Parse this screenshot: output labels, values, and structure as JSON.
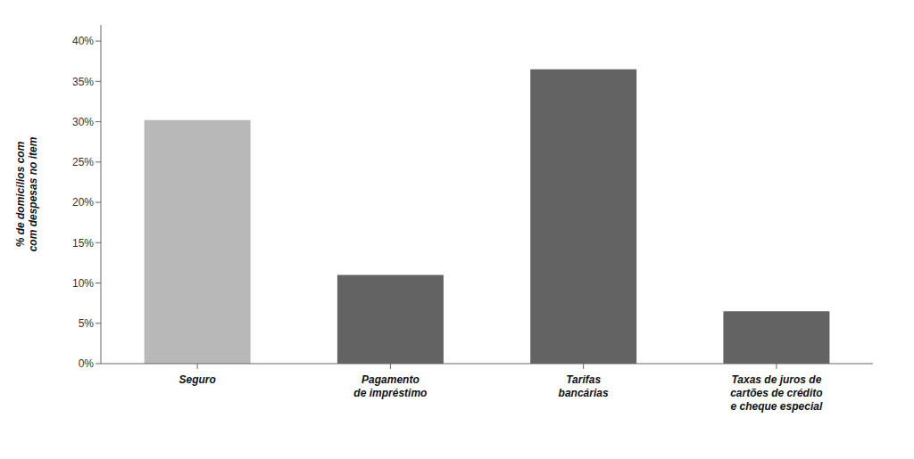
{
  "chart_data": {
    "type": "bar",
    "categories": [
      "Seguro",
      "Pagamento\nde impréstimo",
      "Tarifas\nbancárias",
      "Taxas de juros de\ncartões de crédito\ne cheque especial"
    ],
    "values": [
      0.302,
      0.11,
      0.365,
      0.065
    ],
    "colors": [
      "#b8b8b8",
      "#636363",
      "#636363",
      "#636363"
    ],
    "ylabel": "% de domicílios com\ncom despesas no item",
    "ylim": [
      0,
      0.42
    ],
    "yticks": [
      {
        "value": 0.0,
        "label": "0%"
      },
      {
        "value": 0.05,
        "label": "5%"
      },
      {
        "value": 0.1,
        "label": "10%"
      },
      {
        "value": 0.15,
        "label": "15%"
      },
      {
        "value": 0.2,
        "label": "20%"
      },
      {
        "value": 0.25,
        "label": "25%"
      },
      {
        "value": 0.3,
        "label": "30%"
      },
      {
        "value": 0.35,
        "label": "35%"
      },
      {
        "value": 0.4,
        "label": "40%"
      }
    ],
    "grid": false
  }
}
